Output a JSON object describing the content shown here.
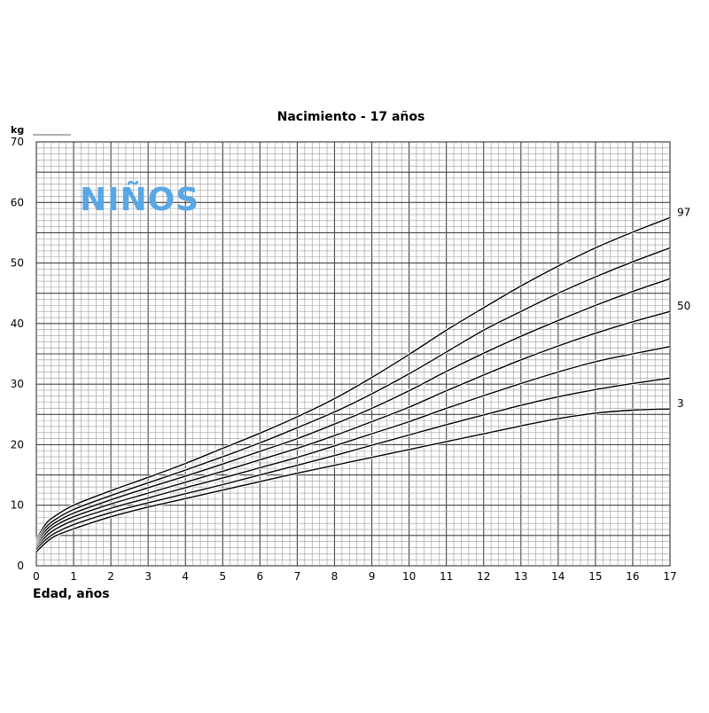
{
  "chart_data": {
    "type": "line",
    "title": "Nacimiento - 17 años",
    "xlabel": "Edad, años",
    "ylabel": "kg",
    "watermark": "NIÑOS",
    "xlim": [
      0,
      17
    ],
    "ylim": [
      0,
      70
    ],
    "x_ticks": [
      0,
      1,
      2,
      3,
      4,
      5,
      6,
      7,
      8,
      9,
      10,
      11,
      12,
      13,
      14,
      15,
      16,
      17
    ],
    "y_ticks": [
      0,
      10,
      20,
      30,
      40,
      50,
      60,
      70
    ],
    "grid": true,
    "percentile_labels": [
      {
        "text": "97",
        "series": 0
      },
      {
        "text": "50",
        "series": 3
      },
      {
        "text": "3",
        "series": 6
      }
    ],
    "x": [
      0,
      0.25,
      0.5,
      1,
      2,
      3,
      4,
      5,
      6,
      7,
      8,
      9,
      10,
      11,
      12,
      13,
      14,
      15,
      16,
      17
    ],
    "series": [
      {
        "values": [
          4.3,
          6.9,
          8.2,
          10.0,
          12.4,
          14.6,
          16.9,
          19.4,
          21.9,
          24.6,
          27.6,
          31.1,
          34.9,
          38.9,
          42.6,
          46.2,
          49.5,
          52.5,
          55.1,
          57.5
        ]
      },
      {
        "values": [
          3.9,
          6.3,
          7.6,
          9.3,
          11.6,
          13.7,
          15.8,
          18.0,
          20.3,
          22.8,
          25.4,
          28.4,
          31.7,
          35.3,
          38.9,
          42.0,
          45.0,
          47.7,
          50.2,
          52.5
        ]
      },
      {
        "values": [
          3.6,
          5.8,
          7.1,
          8.7,
          10.9,
          12.9,
          14.8,
          16.8,
          18.9,
          21.0,
          23.4,
          26.0,
          28.9,
          32.1,
          35.1,
          37.9,
          40.5,
          43.0,
          45.3,
          47.4
        ]
      },
      {
        "values": [
          3.3,
          5.3,
          6.6,
          8.1,
          10.2,
          12.0,
          13.8,
          15.6,
          17.5,
          19.4,
          21.5,
          23.8,
          26.2,
          28.9,
          31.5,
          34.0,
          36.3,
          38.4,
          40.3,
          42.0
        ]
      },
      {
        "values": [
          3.0,
          4.8,
          6.0,
          7.5,
          9.5,
          11.2,
          12.9,
          14.5,
          16.2,
          17.9,
          19.8,
          21.8,
          23.8,
          26.0,
          28.1,
          30.1,
          32.0,
          33.7,
          35.0,
          36.2
        ]
      },
      {
        "values": [
          2.7,
          4.3,
          5.4,
          6.8,
          8.8,
          10.4,
          11.9,
          13.4,
          15.0,
          16.6,
          18.2,
          19.9,
          21.6,
          23.3,
          24.9,
          26.5,
          27.9,
          29.1,
          30.1,
          31.0
        ]
      },
      {
        "values": [
          2.3,
          3.8,
          4.9,
          6.1,
          8.1,
          9.7,
          11.1,
          12.5,
          13.9,
          15.3,
          16.6,
          17.9,
          19.2,
          20.5,
          21.8,
          23.1,
          24.3,
          25.2,
          25.7,
          25.9
        ]
      }
    ]
  }
}
